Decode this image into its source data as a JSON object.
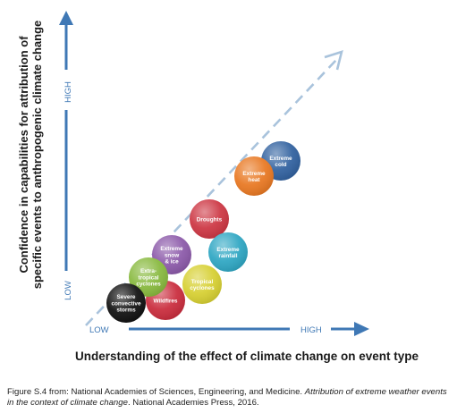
{
  "y_axis": {
    "label_line1": "Confidence in capabilities for attribution of",
    "label_line2": "specific events to anthropogenic climate change",
    "high": "HIGH",
    "low": "LOW"
  },
  "x_axis": {
    "label": "Understanding of the effect of climate change on event type",
    "low": "LOW",
    "high": "HIGH"
  },
  "colors": {
    "axis_arrow": "#3f78b5",
    "diagonal": "#a9c3dc"
  },
  "events": [
    {
      "id": "extreme-cold",
      "lines": [
        "Extreme",
        "cold"
      ],
      "color": "#2e5f9e"
    },
    {
      "id": "extreme-heat",
      "lines": [
        "Extreme",
        "heat"
      ],
      "color": "#e8761f"
    },
    {
      "id": "droughts",
      "lines": [
        "Droughts"
      ],
      "color": "#cc3340"
    },
    {
      "id": "extreme-rainfall",
      "lines": [
        "Extreme",
        "rainfall"
      ],
      "color": "#2ba5c2"
    },
    {
      "id": "extreme-snow-ice",
      "lines": [
        "Extreme",
        "snow",
        "& ice"
      ],
      "color": "#8a57a8"
    },
    {
      "id": "tropical-cyclones",
      "lines": [
        "Tropical",
        "cyclones"
      ],
      "color": "#d6cf2f"
    },
    {
      "id": "wildfires",
      "lines": [
        "Wildfires"
      ],
      "color": "#c9293a"
    },
    {
      "id": "extra-tropical-cyclones",
      "lines": [
        "Extra-",
        "tropical",
        "cyclones"
      ],
      "color": "#86b83b"
    },
    {
      "id": "severe-convective-storms",
      "lines": [
        "Severe",
        "convective",
        "storms"
      ],
      "color": "#0d0d0d"
    }
  ],
  "caption": {
    "prefix": "Figure S.4 from: National Academies of Sciences, Engineering, and Medicine. ",
    "title": "Attribution of extreme weather events in the context of climate change",
    "suffix": ". National Academies Press, 2016."
  }
}
